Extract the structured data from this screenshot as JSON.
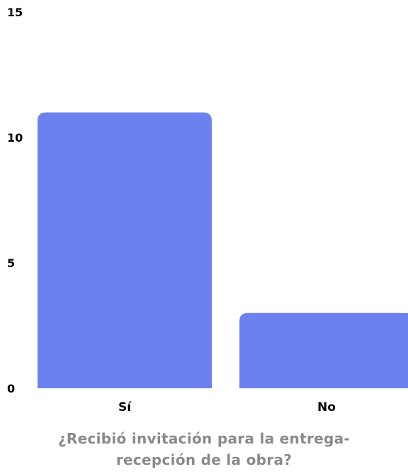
{
  "chart_data": {
    "type": "bar",
    "title_lines": [
      "¿Recibió invitación para la entrega-",
      "recepción de la obra?"
    ],
    "categories": [
      "Sí",
      "No"
    ],
    "values": [
      11,
      3
    ],
    "yticks": [
      "0",
      "5",
      "10",
      "15"
    ],
    "ylim": [
      0,
      15
    ],
    "grid": false,
    "legend": "none",
    "bar_color": "#6b82ee",
    "title_color": "#8a8a8a"
  }
}
